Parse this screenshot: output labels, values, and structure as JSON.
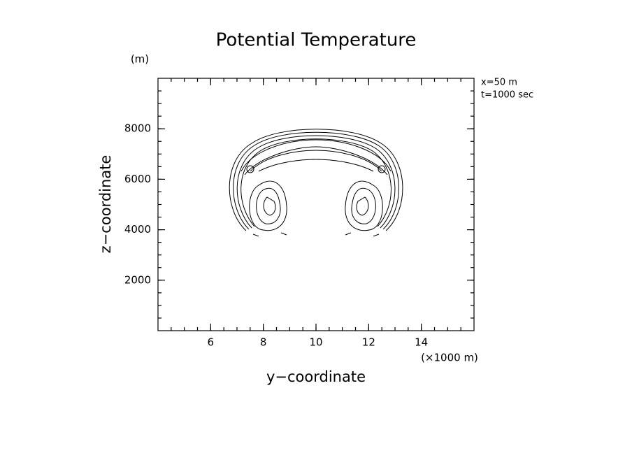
{
  "chart_data": {
    "type": "contour",
    "title": "Potential Temperature",
    "x_label": "y−coordinate",
    "y_label": "z−coordinate",
    "x_unit": "(×1000 m)",
    "y_unit": "(m)",
    "annotations": [
      "x=50 m",
      "t=1000 sec"
    ],
    "xlim": [
      4,
      16
    ],
    "xticks": [
      6,
      8,
      10,
      12,
      14
    ],
    "ylim": [
      0,
      10000
    ],
    "yticks": [
      2000,
      4000,
      6000,
      8000
    ]
  }
}
